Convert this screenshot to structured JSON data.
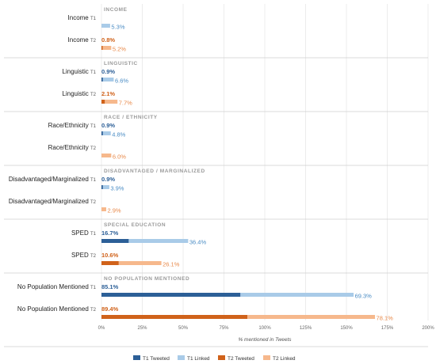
{
  "chart_data": {
    "type": "bar",
    "orientation": "horizontal",
    "xlabel": "% mentioned in Tweets",
    "xlim": [
      0,
      200
    ],
    "xticks": [
      "0%",
      "25%",
      "50%",
      "75%",
      "100%",
      "125%",
      "150%",
      "175%",
      "200%"
    ],
    "tick_values": [
      0,
      25,
      50,
      75,
      100,
      125,
      150,
      175,
      200
    ],
    "grid": true,
    "legend_position": "bottom",
    "colors": {
      "t1_tweeted": "#2c5f97",
      "t1_linked": "#a9cbe8",
      "t2_tweeted": "#d0621a",
      "t2_linked": "#f6b88c",
      "t1_text": "#2c5f97",
      "t1_linked_text": "#4a8cc4",
      "t2_text": "#d0621a",
      "t2_linked_text": "#e8894a"
    },
    "legend": [
      {
        "key": "t1_tweeted",
        "label": "T1 Tweeted"
      },
      {
        "key": "t1_linked",
        "label": "T1 Linked"
      },
      {
        "key": "t2_tweeted",
        "label": "T2 Tweeted"
      },
      {
        "key": "t2_linked",
        "label": "T2 Linked"
      }
    ],
    "groups": [
      {
        "header": "INCOME",
        "rows": [
          {
            "label": "Income",
            "time": "T1",
            "tweeted": 0,
            "tweeted_label": "",
            "linked": 5.3,
            "linked_label": "5.3%"
          },
          {
            "label": "Income",
            "time": "T2",
            "tweeted": 0.8,
            "tweeted_label": "0.8%",
            "linked": 5.2,
            "linked_label": "5.2%"
          }
        ]
      },
      {
        "header": "LINGUISTIC",
        "rows": [
          {
            "label": "Linguistic",
            "time": "T1",
            "tweeted": 0.9,
            "tweeted_label": "0.9%",
            "linked": 6.6,
            "linked_label": "6.6%"
          },
          {
            "label": "Linguistic",
            "time": "T2",
            "tweeted": 2.1,
            "tweeted_label": "2.1%",
            "linked": 7.7,
            "linked_label": "7.7%"
          }
        ]
      },
      {
        "header": "RACE / ETHNICITY",
        "rows": [
          {
            "label": "Race/Ethnicity",
            "time": "T1",
            "tweeted": 0.9,
            "tweeted_label": "0.9%",
            "linked": 4.8,
            "linked_label": "4.8%"
          },
          {
            "label": "Race/Ethnicity",
            "time": "T2",
            "tweeted": 0,
            "tweeted_label": "",
            "linked": 6.0,
            "linked_label": "6.0%"
          }
        ]
      },
      {
        "header": "DISADVANTAGED / MARGINALIZED",
        "rows": [
          {
            "label": "Disadvantaged/Marginalized",
            "time": "T1",
            "tweeted": 0.9,
            "tweeted_label": "0.9%",
            "linked": 3.9,
            "linked_label": "3.9%"
          },
          {
            "label": "Disadvantaged/Marginalized",
            "time": "T2",
            "tweeted": 0,
            "tweeted_label": "",
            "linked": 2.9,
            "linked_label": "2.9%"
          }
        ]
      },
      {
        "header": "SPECIAL EDUCATION",
        "rows": [
          {
            "label": "SPED",
            "time": "T1",
            "tweeted": 16.7,
            "tweeted_label": "16.7%",
            "linked": 36.4,
            "linked_label": "36.4%"
          },
          {
            "label": "SPED",
            "time": "T2",
            "tweeted": 10.6,
            "tweeted_label": "10.6%",
            "linked": 26.1,
            "linked_label": "26.1%"
          }
        ]
      },
      {
        "header": "NO POPULATION MENTIONED",
        "rows": [
          {
            "label": "No Population Mentioned",
            "time": "T1",
            "tweeted": 85.1,
            "tweeted_label": "85.1%",
            "linked": 69.3,
            "linked_label": "69.3%"
          },
          {
            "label": "No Population Mentioned",
            "time": "T2",
            "tweeted": 89.4,
            "tweeted_label": "89.4%",
            "linked": 78.1,
            "linked_label": "78.1%"
          }
        ]
      }
    ]
  }
}
